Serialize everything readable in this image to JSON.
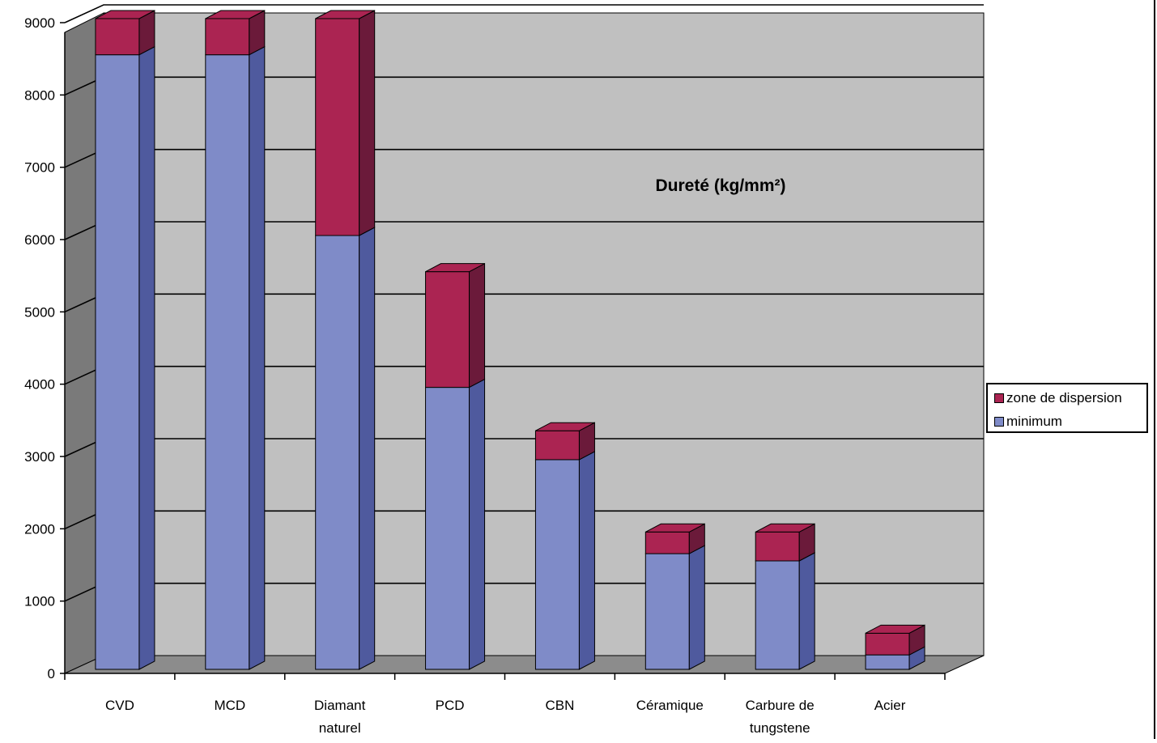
{
  "chart_data": {
    "type": "bar",
    "stacked": true,
    "three_d": true,
    "title": "Dureté (kg/mm²)",
    "xlabel": "",
    "ylabel": "",
    "ylim": [
      0,
      9000
    ],
    "yticks": [
      "0",
      "1000",
      "2000",
      "3000",
      "4000",
      "5000",
      "6000",
      "7000",
      "8000",
      "9000"
    ],
    "categories": [
      "CVD",
      "MCD",
      "Diamant naturel",
      "PCD",
      "CBN",
      "Céramique",
      "Carbure de tungstene",
      "Acier"
    ],
    "category_lines": [
      [
        "CVD"
      ],
      [
        "MCD"
      ],
      [
        "Diamant",
        "naturel"
      ],
      [
        "PCD"
      ],
      [
        "CBN"
      ],
      [
        "Céramique"
      ],
      [
        "Carbure de",
        "tungstene"
      ],
      [
        "Acier"
      ]
    ],
    "series": [
      {
        "name": "minimum",
        "color": "#7f8bc8",
        "values": [
          8500,
          8500,
          6000,
          3900,
          2900,
          1600,
          1500,
          200
        ]
      },
      {
        "name": "zone de dispersion",
        "color": "#ab2452",
        "values": [
          500,
          500,
          3000,
          1600,
          400,
          300,
          400,
          300
        ]
      }
    ],
    "legend_placement": "right",
    "grid": true
  },
  "colors": {
    "plot_wall": "#c0c0c0",
    "side_wall": "#7a7a7a",
    "floor": "#8c8c8c",
    "min_front": "#7f8bc8",
    "min_side": "#4f5a9e",
    "disp_front": "#ab2452",
    "disp_side": "#6b1a3a"
  }
}
